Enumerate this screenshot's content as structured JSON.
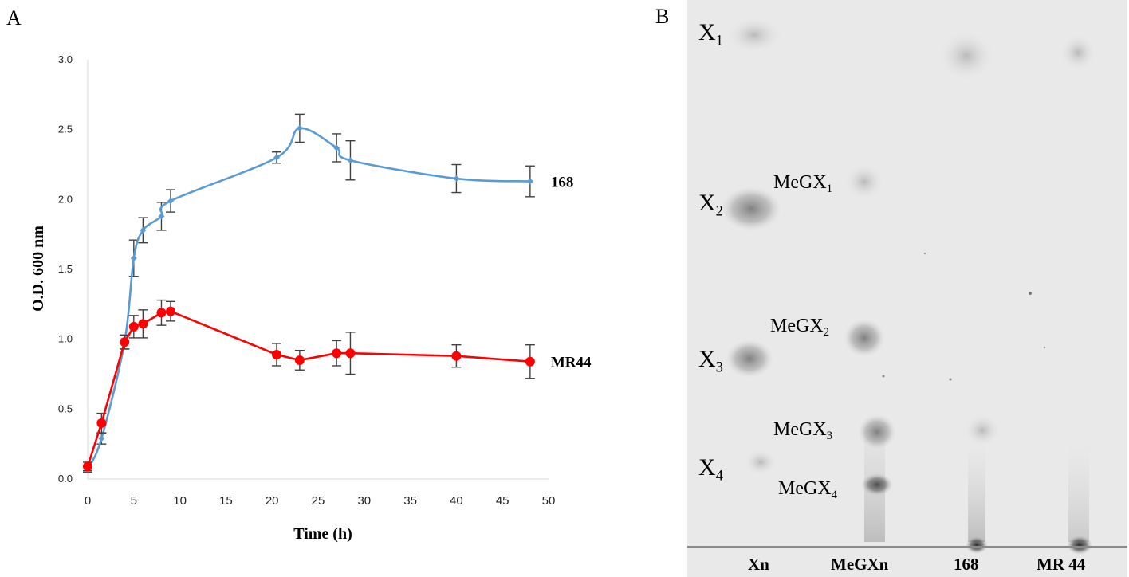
{
  "panels": {
    "a": "A",
    "b": "B"
  },
  "chart_data": {
    "type": "line",
    "xlabel": "Time (h)",
    "ylabel": "O.D. 600 nm",
    "xlim": [
      0,
      50
    ],
    "ylim": [
      0.0,
      3.0
    ],
    "x_ticks": [
      "0",
      "5",
      "10",
      "15",
      "20",
      "25",
      "30",
      "35",
      "40",
      "45",
      "50"
    ],
    "y_ticks": [
      "0.0",
      "0.5",
      "1.0",
      "1.5",
      "2.0",
      "2.5",
      "3.0"
    ],
    "grid": false,
    "series": [
      {
        "name": "168",
        "color": "#5b9bd5",
        "marker": "diamond",
        "smooth": true,
        "x": [
          0,
          1.5,
          4,
          5,
          6,
          8,
          9,
          20.5,
          23,
          27,
          28.5,
          40,
          48
        ],
        "y": [
          0.07,
          0.29,
          0.98,
          1.58,
          1.78,
          1.88,
          1.99,
          2.3,
          2.51,
          2.37,
          2.28,
          2.15,
          2.13
        ],
        "error": [
          0.02,
          0.04,
          0.05,
          0.13,
          0.09,
          0.1,
          0.08,
          0.04,
          0.1,
          0.1,
          0.14,
          0.1,
          0.11
        ]
      },
      {
        "name": "MR44",
        "color": "#ff0000",
        "marker": "circle",
        "smooth": false,
        "x": [
          0,
          1.5,
          4,
          5,
          6,
          8,
          9,
          20.5,
          23,
          27,
          28.5,
          40,
          48
        ],
        "y": [
          0.09,
          0.4,
          0.98,
          1.09,
          1.11,
          1.19,
          1.2,
          0.89,
          0.85,
          0.9,
          0.9,
          0.88,
          0.84
        ],
        "error": [
          0.03,
          0.07,
          0.05,
          0.08,
          0.1,
          0.09,
          0.07,
          0.08,
          0.07,
          0.09,
          0.15,
          0.08,
          0.12
        ]
      }
    ]
  },
  "tlc": {
    "standards": [
      {
        "base": "X",
        "sub": "1"
      },
      {
        "base": "X",
        "sub": "2"
      },
      {
        "base": "X",
        "sub": "3"
      },
      {
        "base": "X",
        "sub": "4"
      }
    ],
    "megx": [
      {
        "base": "MeGX",
        "sub": "1"
      },
      {
        "base": "MeGX",
        "sub": "2"
      },
      {
        "base": "MeGX",
        "sub": "3"
      },
      {
        "base": "MeGX",
        "sub": "4"
      }
    ],
    "lanes": [
      "Xn",
      "MeGXn",
      "168",
      "MR 44"
    ]
  }
}
